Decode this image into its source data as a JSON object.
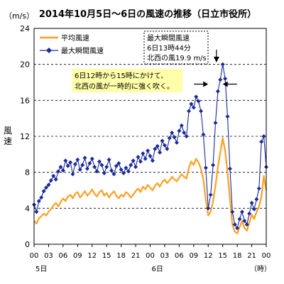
{
  "chart_data": {
    "type": "line",
    "title": "2014年10月5日～6日の風速の推移（日立市役所）",
    "unit_label": "（m/s）",
    "ylabel": "風速",
    "ylim": [
      0,
      24
    ],
    "yticks": [
      0,
      4,
      8,
      12,
      16,
      20,
      24
    ],
    "xlim": [
      0,
      48
    ],
    "xticks": [
      0,
      3,
      6,
      9,
      12,
      15,
      18,
      21,
      24,
      27,
      30,
      33,
      36,
      39,
      42,
      45,
      48
    ],
    "xtick_labels": [
      "00",
      "03",
      "06",
      "09",
      "12",
      "15",
      "18",
      "21",
      "00",
      "03",
      "06",
      "09",
      "12",
      "15",
      "18",
      "21",
      "00"
    ],
    "day_labels": [
      {
        "x": 1.5,
        "text": "5日"
      },
      {
        "x": 25.5,
        "text": "6日"
      }
    ],
    "xunit_label": "（時）",
    "grid": "horizontal-dashed",
    "legend_position": "top-left",
    "colors": {
      "avg": "#ffa020",
      "max": "#1a2a9a",
      "callout_bg": "#ffffaa",
      "grid": "#000000"
    },
    "series": [
      {
        "name": "平均風速",
        "style": "line",
        "x": [
          0,
          0.5,
          1,
          1.5,
          2,
          2.5,
          3,
          3.5,
          4,
          4.5,
          5,
          5.5,
          6,
          6.5,
          7,
          7.5,
          8,
          8.5,
          9,
          9.5,
          10,
          10.5,
          11,
          11.5,
          12,
          12.5,
          13,
          13.5,
          14,
          14.5,
          15,
          15.5,
          16,
          16.5,
          17,
          17.5,
          18,
          18.5,
          19,
          19.5,
          20,
          20.5,
          21,
          21.5,
          22,
          22.5,
          23,
          23.5,
          24,
          24.5,
          25,
          25.5,
          26,
          26.5,
          27,
          27.5,
          28,
          28.5,
          29,
          29.5,
          30,
          30.5,
          31,
          31.5,
          32,
          32.5,
          33,
          33.5,
          34,
          34.5,
          35,
          35.5,
          36,
          36.5,
          37,
          37.5,
          38,
          38.5,
          39,
          39.5,
          40,
          40.5,
          41,
          41.5,
          42,
          42.5,
          43,
          43.5,
          44,
          44.5,
          45,
          45.5,
          46,
          46.5,
          47,
          47.5,
          48
        ],
        "values": [
          2.6,
          2.3,
          2.9,
          3.1,
          3.4,
          3.2,
          3.6,
          3.9,
          4.3,
          4.6,
          4.2,
          4.7,
          5.1,
          4.8,
          5.3,
          5.5,
          5.1,
          5.6,
          5.8,
          5.2,
          5.5,
          5.9,
          5.4,
          5.7,
          6.1,
          5.6,
          5.3,
          5.8,
          6.0,
          5.4,
          5.7,
          5.2,
          5.6,
          5.9,
          5.4,
          5.1,
          5.5,
          5.3,
          5.8,
          5.6,
          5.2,
          5.5,
          5.9,
          6.2,
          5.8,
          6.4,
          6.1,
          6.6,
          6.3,
          6.0,
          6.5,
          6.8,
          6.4,
          6.9,
          7.2,
          6.8,
          7.1,
          7.5,
          7.2,
          7.0,
          7.4,
          7.8,
          7.5,
          7.3,
          8.5,
          9.2,
          8.8,
          9.5,
          9.1,
          8.4,
          7.2,
          5.0,
          3.2,
          3.6,
          4.8,
          6.5,
          8.6,
          10.2,
          11.8,
          10.4,
          8.0,
          5.0,
          2.2,
          1.4,
          1.2,
          1.9,
          2.6,
          1.8,
          1.5,
          2.4,
          3.3,
          2.8,
          3.6,
          4.2,
          5.3,
          7.6,
          6.0
        ]
      },
      {
        "name": "最大瞬間風速",
        "style": "line-diamond",
        "x": [
          0,
          0.5,
          1,
          1.5,
          2,
          2.5,
          3,
          3.5,
          4,
          4.5,
          5,
          5.5,
          6,
          6.5,
          7,
          7.5,
          8,
          8.5,
          9,
          9.5,
          10,
          10.5,
          11,
          11.5,
          12,
          12.5,
          13,
          13.5,
          14,
          14.5,
          15,
          15.5,
          16,
          16.5,
          17,
          17.5,
          18,
          18.5,
          19,
          19.5,
          20,
          20.5,
          21,
          21.5,
          22,
          22.5,
          23,
          23.5,
          24,
          24.5,
          25,
          25.5,
          26,
          26.5,
          27,
          27.5,
          28,
          28.5,
          29,
          29.5,
          30,
          30.5,
          31,
          31.5,
          32,
          32.5,
          33,
          33.5,
          34,
          34.5,
          35,
          35.5,
          36,
          36.5,
          37,
          37.5,
          38,
          38.5,
          39,
          39.5,
          40,
          40.5,
          41,
          41.5,
          42,
          42.5,
          43,
          43.5,
          44,
          44.5,
          45,
          45.5,
          46,
          46.5,
          47,
          47.5,
          48
        ],
        "values": [
          4.4,
          3.6,
          4.8,
          5.2,
          5.9,
          6.3,
          6.6,
          7.1,
          7.6,
          7.2,
          8.1,
          8.6,
          8.2,
          9.3,
          8.7,
          9.1,
          7.8,
          8.9,
          9.4,
          8.3,
          8.8,
          9.6,
          8.4,
          9.0,
          9.5,
          8.6,
          8.1,
          9.2,
          8.8,
          7.9,
          8.6,
          9.4,
          8.2,
          7.8,
          8.7,
          9.0,
          8.3,
          7.9,
          8.5,
          8.1,
          8.8,
          9.3,
          8.6,
          9.7,
          9.2,
          10.1,
          9.5,
          10.4,
          9.8,
          9.3,
          10.6,
          10.9,
          10.2,
          11.5,
          11.0,
          10.6,
          11.8,
          12.4,
          11.9,
          11.3,
          12.6,
          13.2,
          12.4,
          12.0,
          14.8,
          15.6,
          15.2,
          16.4,
          15.9,
          14.8,
          12.2,
          8.5,
          4.0,
          5.5,
          8.8,
          13.5,
          17.0,
          18.3,
          20.0,
          18.4,
          14.2,
          8.4,
          3.6,
          2.2,
          1.8,
          2.8,
          3.6,
          2.6,
          2.2,
          3.4,
          4.6,
          3.9,
          5.0,
          6.2,
          11.4,
          12.0,
          8.6
        ]
      }
    ],
    "annotations": {
      "max_box": [
        "最大瞬間風速",
        "6日13時44分",
        "北西の風19.9 m/s"
      ],
      "max_point": {
        "x": 37.7,
        "y": 19.9
      },
      "callout": [
        "6日12時から15時にかけて、",
        "北西の風が一時的に強く吹く。"
      ],
      "callout_span": [
        36,
        39
      ]
    }
  }
}
